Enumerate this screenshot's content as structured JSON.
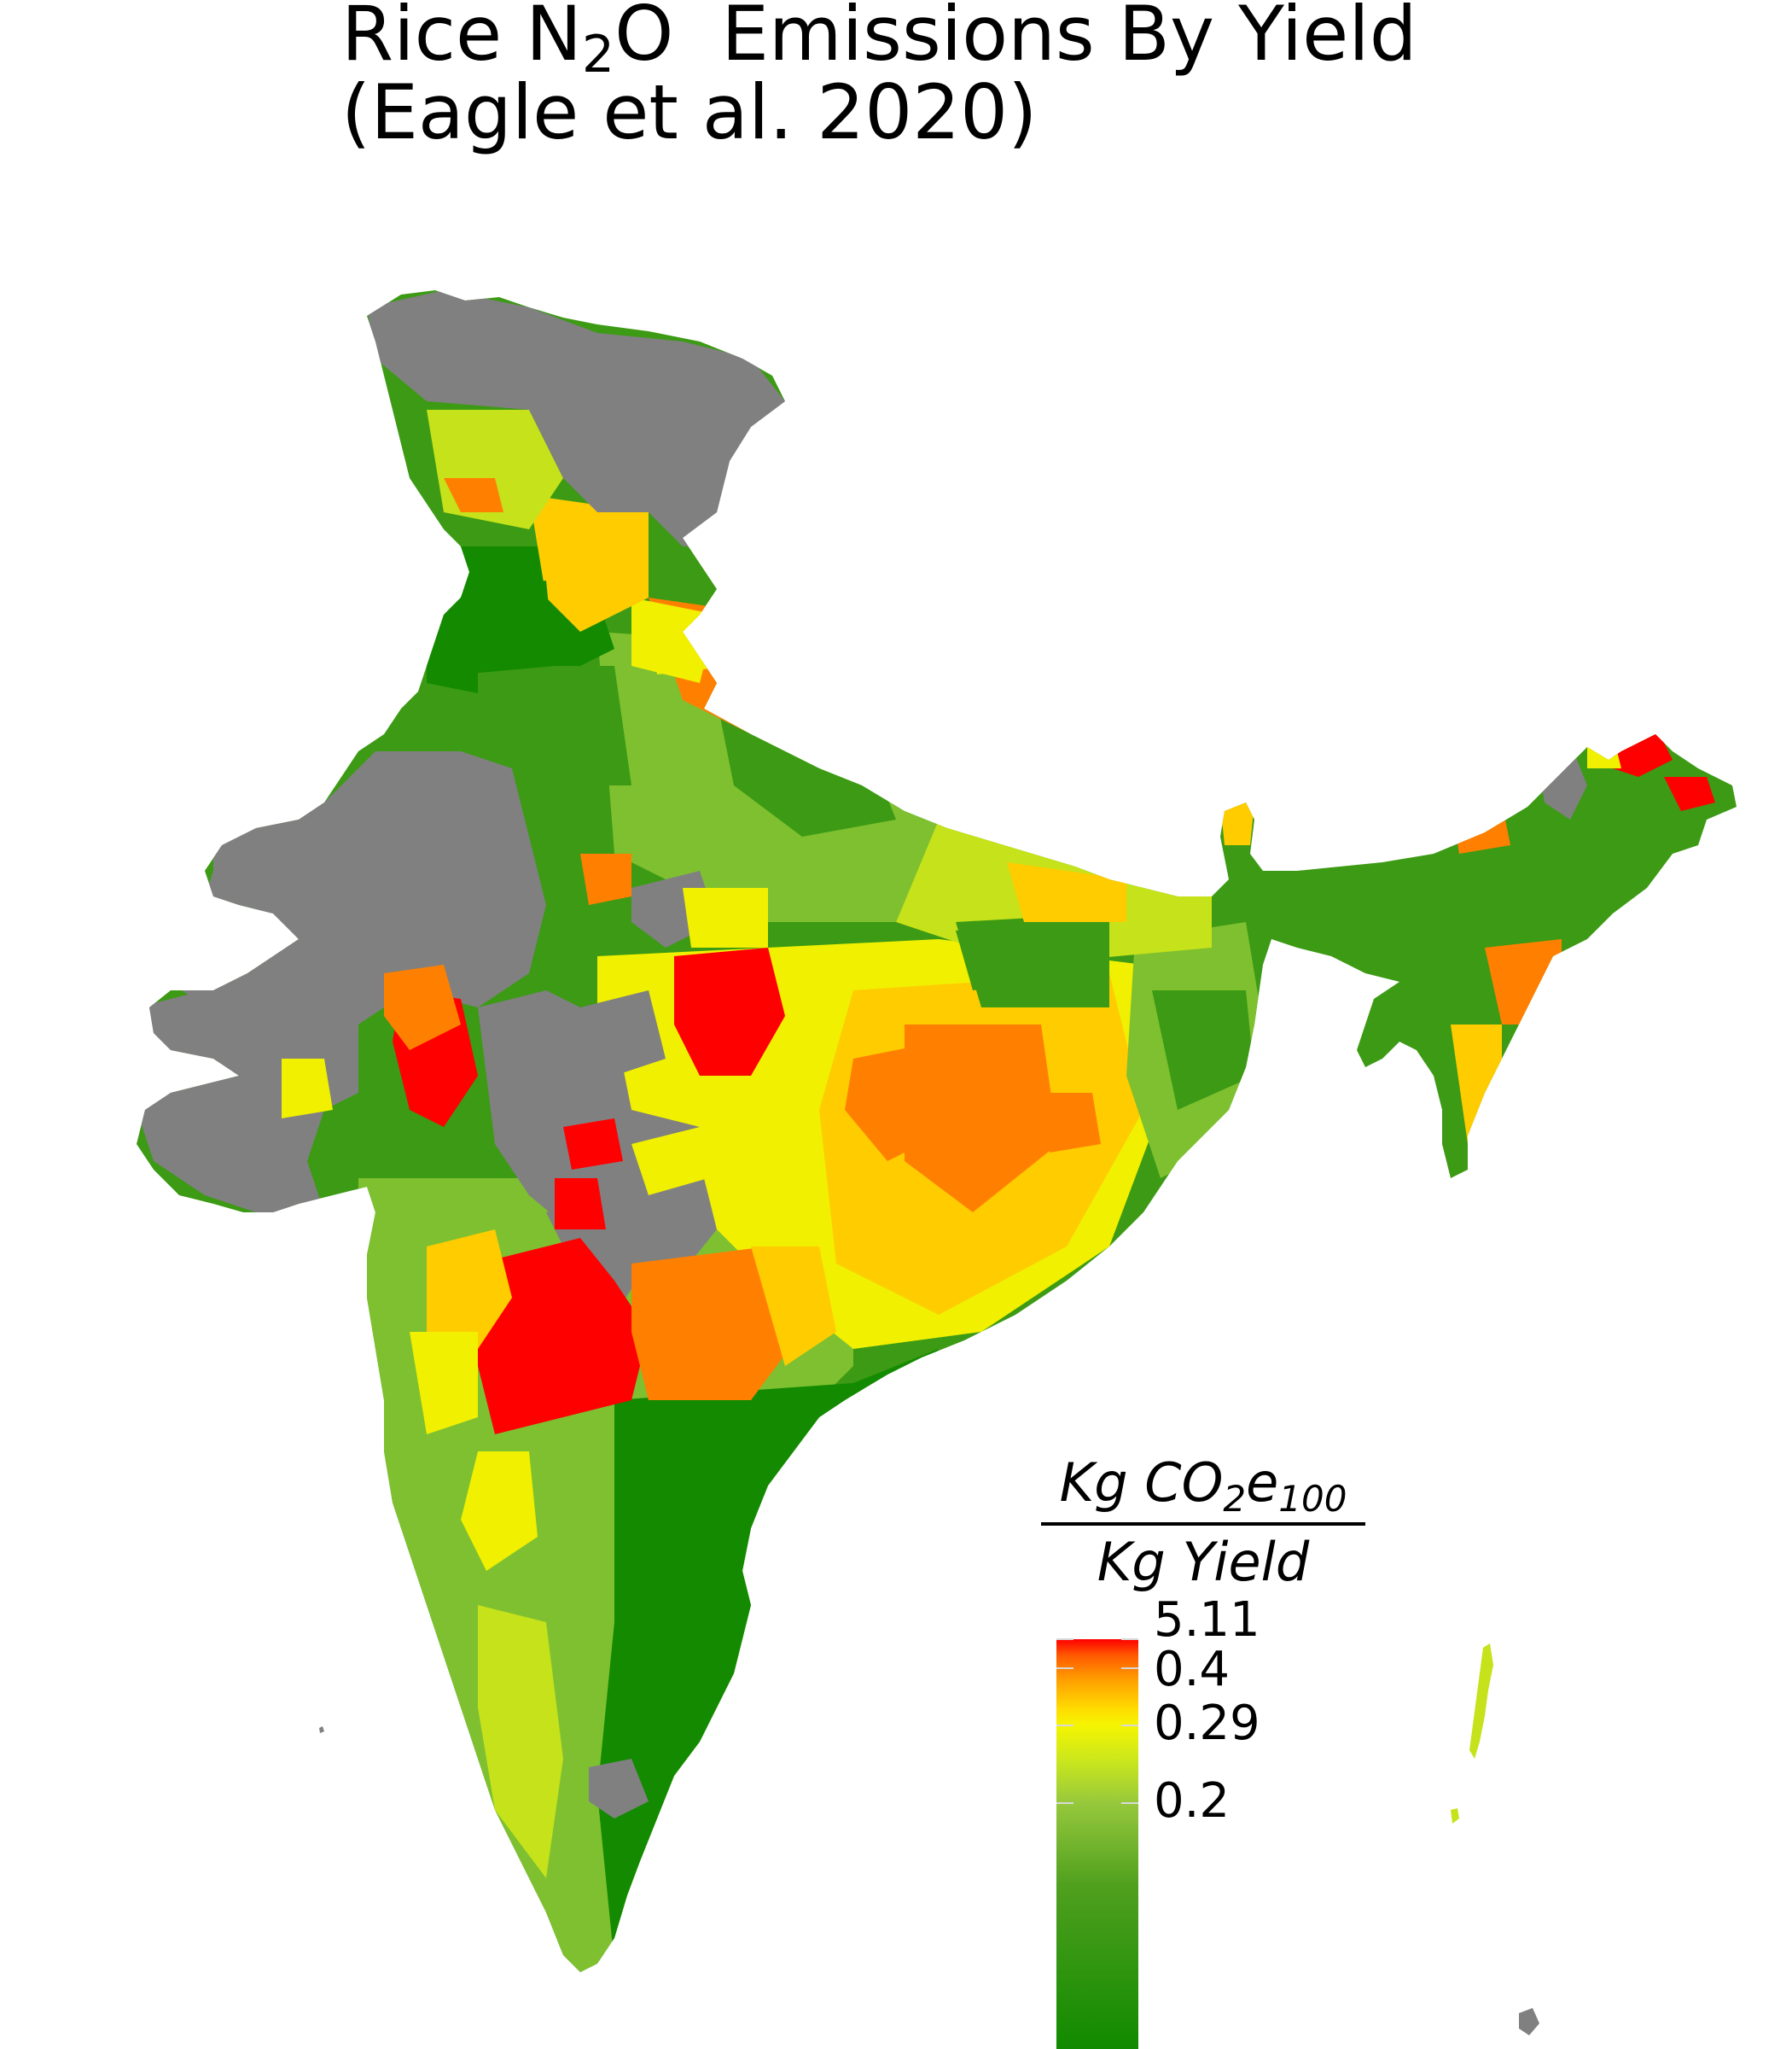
{
  "title": {
    "line1_prefix": "Rice N",
    "line1_sub": "2",
    "line1_suffix": "O  Emissions By Yield",
    "line2": "(Eagle et al. 2020)"
  },
  "legend": {
    "numerator_prefix": "Kg CO",
    "numerator_sub1": "2",
    "numerator_mid": "e",
    "numerator_sub2": "100",
    "denominator": "Kg Yield",
    "ticks": [
      {
        "label": "5.11",
        "fraction": 1.0
      },
      {
        "label": "0.4",
        "fraction": 0.93
      },
      {
        "label": "0.29",
        "fraction": 0.79
      },
      {
        "label": "0.2",
        "fraction": 0.6
      }
    ],
    "gradient": [
      {
        "color": "#ff0000",
        "fraction": 1.0
      },
      {
        "color": "#ff5a00",
        "fraction": 0.96
      },
      {
        "color": "#ffa000",
        "fraction": 0.9
      },
      {
        "color": "#ffdc00",
        "fraction": 0.83
      },
      {
        "color": "#f5f500",
        "fraction": 0.79
      },
      {
        "color": "#c8e61e",
        "fraction": 0.7
      },
      {
        "color": "#96c83c",
        "fraction": 0.6
      },
      {
        "color": "#50a01e",
        "fraction": 0.4
      },
      {
        "color": "#108a00",
        "fraction": 0.0
      }
    ]
  },
  "colors": {
    "no_data": "#808080",
    "border": "#ffffff",
    "high": "#ff0000",
    "mid_high": "#ff8000",
    "mid": "#ffcc00",
    "yellow": "#f0f000",
    "yellow_green": "#c5e21a",
    "green_light": "#7ec030",
    "green": "#3c9a14",
    "green_dark": "#138a00"
  }
}
